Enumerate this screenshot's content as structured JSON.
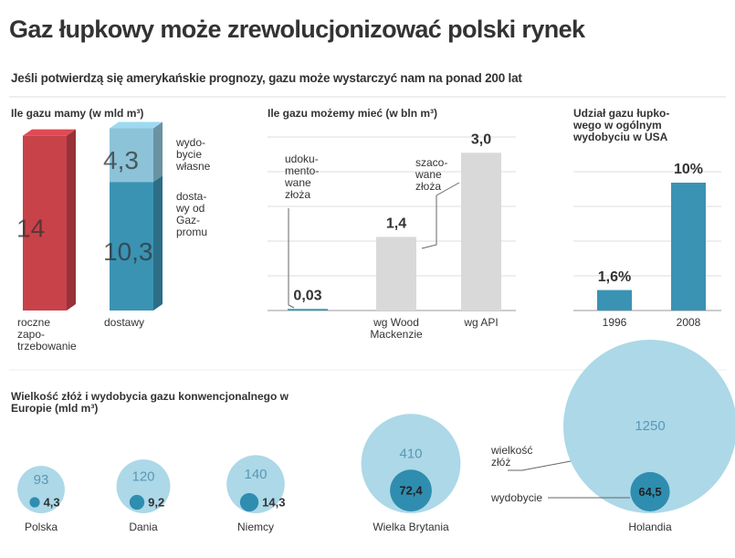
{
  "header": {
    "title": "Gaz łupkowy może zrewolucjonizować polski rynek",
    "subtitle": "Jeśli potwierdzą się amerykańskie prognozy, gazu może wystarczyć nam na ponad 200 lat"
  },
  "chart_data": [
    {
      "type": "stacked-bar",
      "title": "Ile gazu mamy (w mld m³)",
      "categories": [
        "roczne zapo-trzebowanie",
        "dostawy"
      ],
      "ylim": [
        0,
        15
      ],
      "series": [
        {
          "color": "#c8424a",
          "values": [
            14,
            null
          ]
        },
        {
          "name": "dosta-wy od Gaz-promu",
          "color": "#3a93b3",
          "values": [
            null,
            10.3
          ],
          "value_labels": [
            null,
            "10,3"
          ]
        },
        {
          "name": "wydo-bycie własne",
          "color": "#8cc3d8",
          "values": [
            null,
            4.3
          ],
          "value_labels": [
            null,
            "4,3"
          ]
        }
      ]
    },
    {
      "type": "bar",
      "title": "Ile gazu możemy mieć (w bln m³)",
      "categories": [
        null,
        "wg Wood Mackenzie",
        "wg API"
      ],
      "values": [
        0.03,
        1.4,
        3.0
      ],
      "value_labels": [
        "0,03",
        "1,4",
        "3,0"
      ],
      "colors": [
        "#3a93b3",
        "#d9d9d9",
        "#d9d9d9"
      ],
      "ylim": [
        0,
        3.3
      ],
      "grid": true,
      "annotations": [
        "udoku-mento-wane złoża",
        "szaco-wane złoża"
      ]
    },
    {
      "type": "bar",
      "title": "Udział gazu łupko-wego w ogólnym wydobyciu w USA",
      "categories": [
        "1996",
        "2008"
      ],
      "values": [
        1.6,
        10
      ],
      "value_labels": [
        "1,6%",
        "10%"
      ],
      "colors": [
        "#3a93b3",
        "#3a93b3"
      ],
      "ylim": [
        0,
        12
      ],
      "grid": true
    },
    {
      "type": "bubble",
      "title": "Wielkość złóż i wydobycia gazu konwencjonalnego w Europie (mld m³)",
      "categories": [
        "Polska",
        "Dania",
        "Niemcy",
        "Wielka Brytania",
        "Holandia"
      ],
      "series": [
        {
          "name": "wielkość złóż",
          "color": "#acd8e8",
          "values": [
            93,
            120,
            140,
            410,
            1250
          ]
        },
        {
          "name": "wydobycie",
          "color": "#2f8db0",
          "values": [
            4.3,
            9.2,
            14.3,
            72.4,
            64.5
          ],
          "value_labels": [
            "4,3",
            "9,2",
            "14,3",
            "72,4",
            "64,5"
          ]
        }
      ]
    }
  ]
}
